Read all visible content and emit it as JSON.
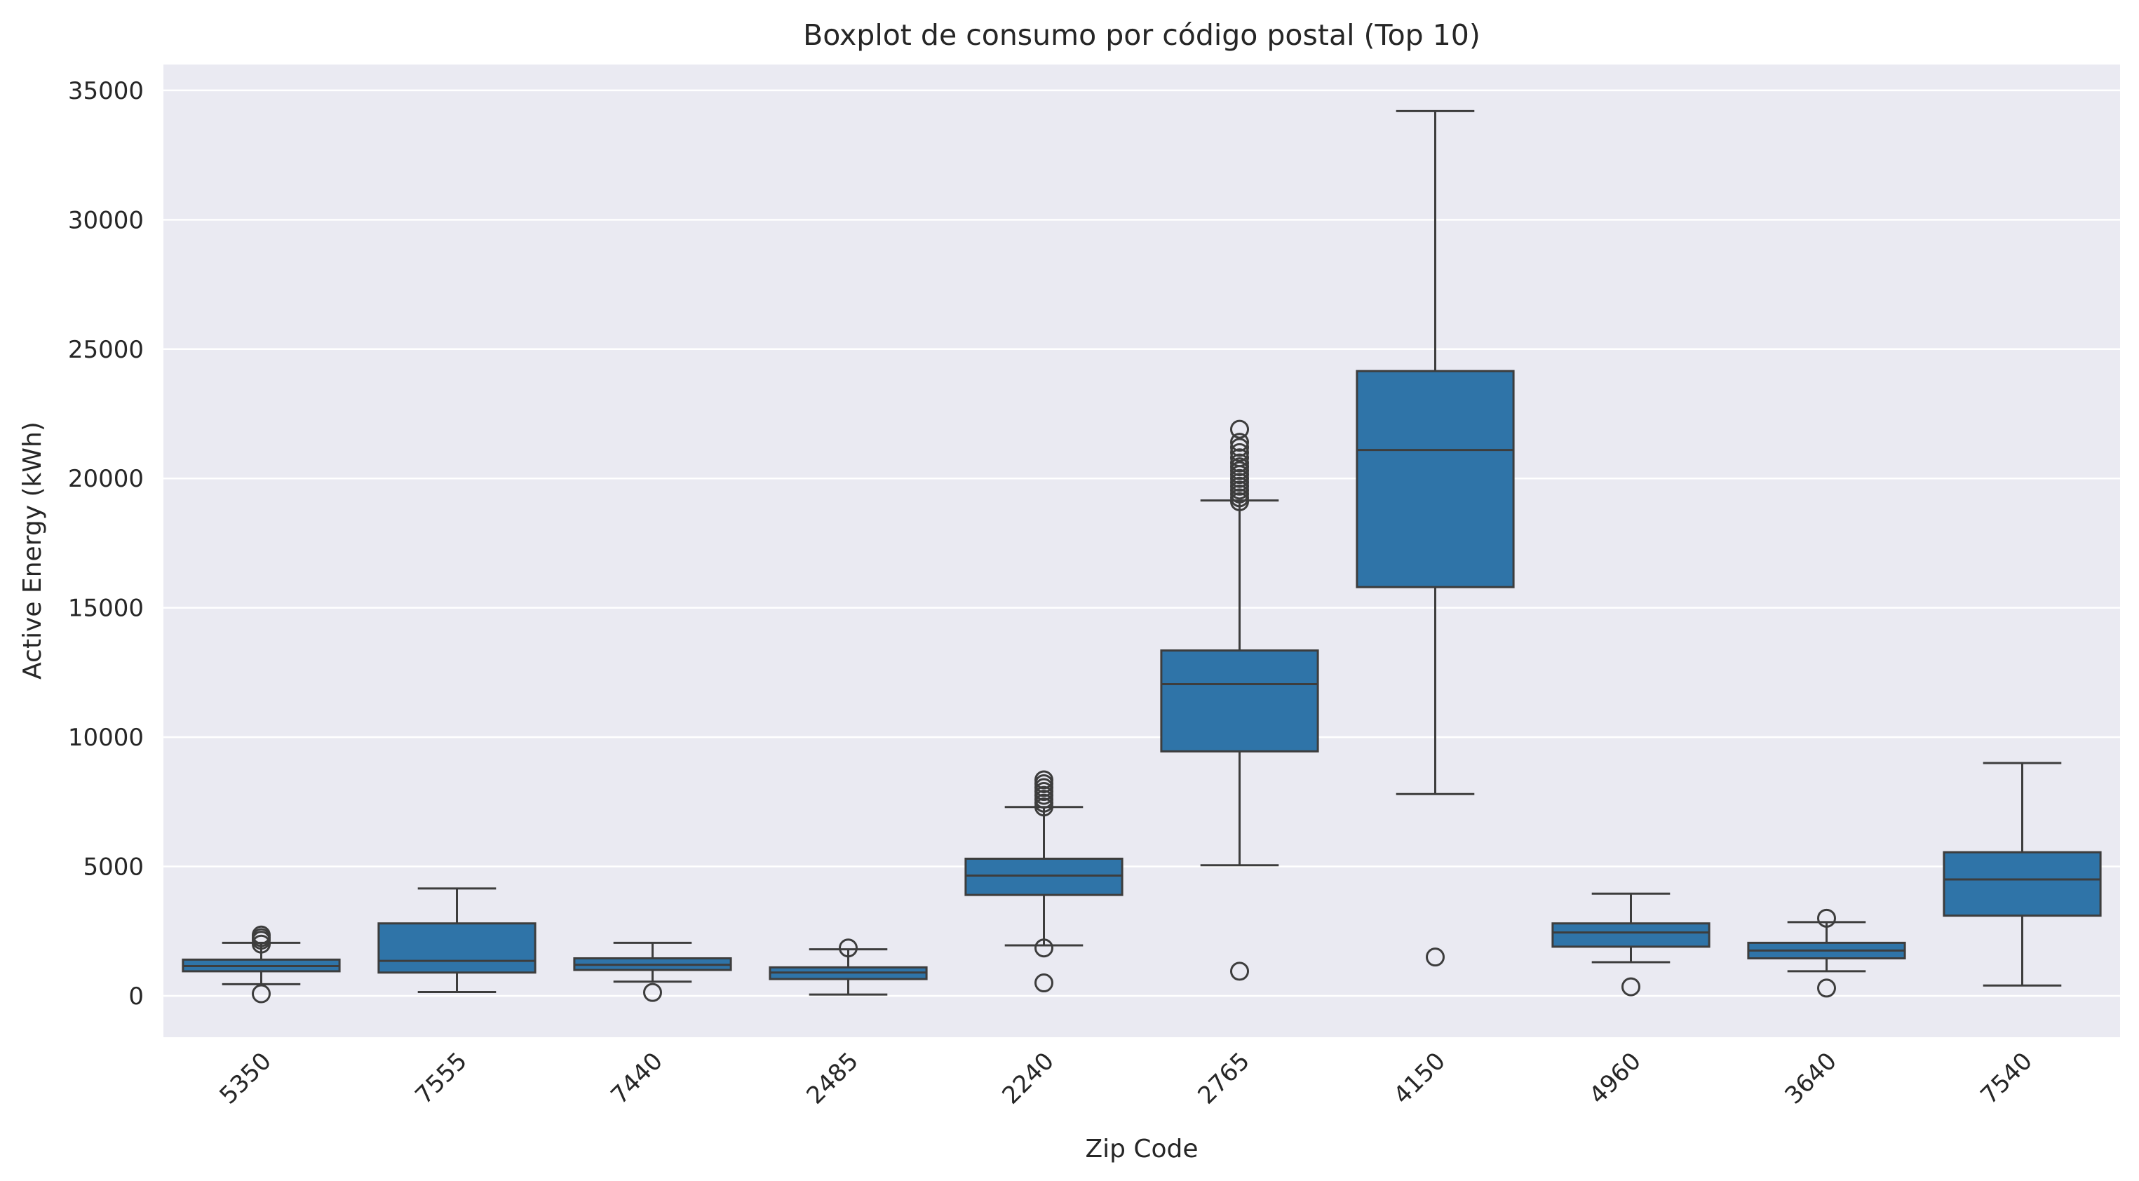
{
  "chart_data": {
    "type": "box",
    "title": "Boxplot de consumo por código postal (Top 10)",
    "xlabel": "Zip Code",
    "ylabel": "Active Energy (kWh)",
    "ylim": [
      -1600,
      36000
    ],
    "yticks": [
      0,
      5000,
      10000,
      15000,
      20000,
      25000,
      30000,
      35000
    ],
    "grid": true,
    "colors": {
      "plot_bg": "#eaeaf2",
      "box": "#2f74a8",
      "edge": "#3d3d3d",
      "grid": "#ffffff"
    },
    "categories": [
      "5350",
      "7555",
      "7440",
      "2485",
      "2240",
      "2765",
      "4150",
      "4960",
      "3640",
      "7540"
    ],
    "boxes": [
      {
        "whislo": 450,
        "q1": 950,
        "med": 1150,
        "q3": 1400,
        "whishi": 2050,
        "fliers": [
          80,
          2000,
          2150,
          2250,
          2350
        ]
      },
      {
        "whislo": 150,
        "q1": 900,
        "med": 1350,
        "q3": 2800,
        "whishi": 4150,
        "fliers": []
      },
      {
        "whislo": 550,
        "q1": 1000,
        "med": 1200,
        "q3": 1450,
        "whishi": 2050,
        "fliers": [
          130
        ]
      },
      {
        "whislo": 50,
        "q1": 650,
        "med": 900,
        "q3": 1100,
        "whishi": 1800,
        "fliers": [
          1850
        ]
      },
      {
        "whislo": 1950,
        "q1": 3900,
        "med": 4650,
        "q3": 5300,
        "whishi": 7300,
        "fliers": [
          500,
          1850,
          7300,
          7450,
          7600,
          7750,
          7900,
          8050,
          8200,
          8350
        ]
      },
      {
        "whislo": 5050,
        "q1": 9450,
        "med": 12050,
        "q3": 13350,
        "whishi": 19150,
        "fliers": [
          950,
          19100,
          19250,
          19400,
          19550,
          19700,
          19850,
          20000,
          20150,
          20300,
          20450,
          20600,
          20800,
          21000,
          21200,
          21400,
          21900
        ]
      },
      {
        "whislo": 7800,
        "q1": 15800,
        "med": 21100,
        "q3": 24150,
        "whishi": 34200,
        "fliers": [
          1500
        ]
      },
      {
        "whislo": 1300,
        "q1": 1900,
        "med": 2450,
        "q3": 2800,
        "whishi": 3950,
        "fliers": [
          350
        ]
      },
      {
        "whislo": 950,
        "q1": 1450,
        "med": 1750,
        "q3": 2050,
        "whishi": 2850,
        "fliers": [
          300,
          3000
        ]
      },
      {
        "whislo": 400,
        "q1": 3100,
        "med": 4500,
        "q3": 5550,
        "whishi": 9000,
        "fliers": []
      }
    ]
  }
}
